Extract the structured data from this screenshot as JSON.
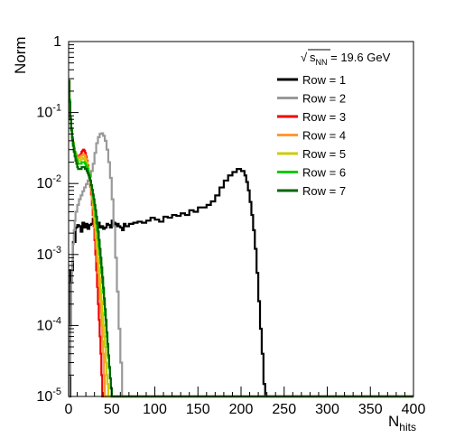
{
  "chart_data": {
    "type": "line",
    "title": "",
    "annotation": {
      "sqrt_symbol": "√",
      "s": "s",
      "s_sub": "NN",
      "text": " = 19.6 GeV"
    },
    "xlabel": {
      "main": "N",
      "sub": "hits"
    },
    "ylabel": "Norm",
    "xlim": [
      0,
      400
    ],
    "ylim": [
      1e-05,
      1
    ],
    "yscale": "log",
    "grid": false,
    "legend_position": "top-right",
    "x_ticks": [
      0,
      50,
      100,
      150,
      200,
      250,
      300,
      350,
      400
    ],
    "y_ticks": [
      {
        "value": 1,
        "base": "1",
        "exp": ""
      },
      {
        "value": 0.1,
        "base": "10",
        "exp": "-1"
      },
      {
        "value": 0.01,
        "base": "10",
        "exp": "-2"
      },
      {
        "value": 0.001,
        "base": "10",
        "exp": "-3"
      },
      {
        "value": 0.0001,
        "base": "10",
        "exp": "-4"
      },
      {
        "value": 1e-05,
        "base": "10",
        "exp": "-5"
      }
    ],
    "series": [
      {
        "name": "Row = 1",
        "color": "#000000",
        "x": [
          0,
          2,
          5,
          8,
          10,
          12,
          14,
          16,
          18,
          20,
          22,
          24,
          26,
          28,
          30,
          32,
          34,
          36,
          38,
          40,
          42,
          44,
          46,
          48,
          50,
          52,
          54,
          56,
          58,
          60,
          62,
          64,
          66,
          70,
          75,
          80,
          85,
          90,
          95,
          100,
          105,
          110,
          115,
          120,
          125,
          130,
          135,
          140,
          145,
          150,
          155,
          160,
          165,
          170,
          175,
          180,
          185,
          190,
          195,
          200,
          204,
          206,
          208,
          210,
          212,
          214,
          216,
          218,
          220,
          222,
          224,
          226,
          228,
          230,
          232,
          234,
          236,
          238
        ],
        "y": [
          1e-05,
          0.0006,
          0.0015,
          0.0024,
          0.0026,
          0.0025,
          0.0021,
          0.0028,
          0.0024,
          0.0027,
          0.0023,
          0.0026,
          0.0027,
          0.0032,
          0.0024,
          0.0023,
          0.0028,
          0.0024,
          0.0025,
          0.0023,
          0.0024,
          0.0027,
          0.0026,
          0.0024,
          0.003,
          0.0028,
          0.0025,
          0.0027,
          0.0025,
          0.0024,
          0.0022,
          0.0027,
          0.0025,
          0.0027,
          0.0028,
          0.0029,
          0.0028,
          0.003,
          0.0033,
          0.0031,
          0.0029,
          0.0034,
          0.0033,
          0.0036,
          0.0035,
          0.0038,
          0.0036,
          0.0042,
          0.004,
          0.0046,
          0.0046,
          0.005,
          0.0056,
          0.0068,
          0.0088,
          0.011,
          0.013,
          0.0145,
          0.016,
          0.015,
          0.013,
          0.0105,
          0.008,
          0.0055,
          0.0036,
          0.0022,
          0.0012,
          0.00055,
          0.00022,
          9e-05,
          4e-05,
          1.5e-05,
          1e-05,
          1e-05,
          1e-05,
          1e-05,
          1e-05,
          1e-05
        ]
      },
      {
        "name": "Row = 2",
        "color": "#999999",
        "x": [
          0,
          1,
          2,
          3,
          4,
          5,
          6,
          7,
          8,
          10,
          12,
          14,
          16,
          18,
          20,
          22,
          24,
          26,
          28,
          30,
          32,
          34,
          36,
          38,
          40,
          42,
          44,
          46,
          48,
          50,
          52,
          54,
          56,
          58,
          60,
          62,
          64,
          66,
          68,
          70
        ],
        "y": [
          1e-05,
          2e-05,
          0.0001,
          0.0004,
          0.0008,
          0.0014,
          0.0022,
          0.003,
          0.004,
          0.005,
          0.006,
          0.0068,
          0.0078,
          0.0088,
          0.0098,
          0.011,
          0.0125,
          0.015,
          0.019,
          0.027,
          0.037,
          0.045,
          0.05,
          0.051,
          0.047,
          0.04,
          0.03,
          0.02,
          0.012,
          0.006,
          0.0025,
          0.0009,
          0.0003,
          9e-05,
          3e-05,
          1e-05,
          1e-05,
          1e-05,
          1e-05,
          1e-05
        ]
      },
      {
        "name": "Row = 3",
        "color": "#ee0000",
        "x": [
          0,
          1,
          2,
          3,
          4,
          5,
          6,
          7,
          8,
          9,
          10,
          11,
          12,
          13,
          14,
          15,
          16,
          17,
          18,
          19,
          20,
          21,
          22,
          23,
          24,
          25,
          26,
          27,
          28,
          29,
          30,
          31,
          32,
          33,
          34,
          35,
          36,
          37,
          38,
          39,
          40,
          41,
          42,
          44,
          50,
          60,
          80
        ],
        "y": [
          0.28,
          0.15,
          0.085,
          0.06,
          0.045,
          0.038,
          0.032,
          0.028,
          0.026,
          0.025,
          0.024,
          0.024,
          0.024,
          0.025,
          0.026,
          0.028,
          0.029,
          0.03,
          0.029,
          0.027,
          0.024,
          0.021,
          0.018,
          0.015,
          0.012,
          0.009,
          0.007,
          0.005,
          0.0036,
          0.0025,
          0.0016,
          0.001,
          0.0006,
          0.00035,
          0.0002,
          0.00012,
          7e-05,
          4e-05,
          2e-05,
          1e-05,
          1e-05,
          1e-05,
          1e-05,
          1e-05,
          1e-05,
          1e-05,
          1e-05
        ]
      },
      {
        "name": "Row = 4",
        "color": "#ff9933",
        "x": [
          0,
          1,
          2,
          3,
          4,
          5,
          6,
          7,
          8,
          9,
          10,
          11,
          12,
          13,
          14,
          15,
          16,
          17,
          18,
          19,
          20,
          21,
          22,
          23,
          24,
          25,
          26,
          27,
          28,
          29,
          30,
          31,
          32,
          33,
          34,
          35,
          36,
          37,
          38,
          39,
          40,
          41,
          42,
          43,
          44,
          46,
          50,
          60,
          80
        ],
        "y": [
          0.28,
          0.15,
          0.085,
          0.06,
          0.045,
          0.038,
          0.032,
          0.028,
          0.026,
          0.024,
          0.023,
          0.023,
          0.023,
          0.024,
          0.024,
          0.025,
          0.025,
          0.026,
          0.025,
          0.024,
          0.022,
          0.02,
          0.017,
          0.015,
          0.012,
          0.01,
          0.008,
          0.006,
          0.0045,
          0.0033,
          0.0024,
          0.0017,
          0.0012,
          0.0008,
          0.00055,
          0.00036,
          0.00024,
          0.00015,
          0.0001,
          6e-05,
          4e-05,
          2e-05,
          1e-05,
          1e-05,
          1e-05,
          1e-05,
          1e-05,
          1e-05,
          1e-05
        ]
      },
      {
        "name": "Row = 5",
        "color": "#cccc00",
        "x": [
          0,
          1,
          2,
          3,
          4,
          5,
          6,
          7,
          8,
          9,
          10,
          11,
          12,
          13,
          14,
          15,
          16,
          17,
          18,
          19,
          20,
          21,
          22,
          23,
          24,
          25,
          26,
          27,
          28,
          29,
          30,
          31,
          32,
          33,
          34,
          35,
          36,
          37,
          38,
          39,
          40,
          41,
          42,
          43,
          44,
          45,
          46,
          47,
          48,
          50,
          60,
          80
        ],
        "y": [
          0.28,
          0.15,
          0.085,
          0.06,
          0.045,
          0.038,
          0.032,
          0.028,
          0.025,
          0.023,
          0.022,
          0.021,
          0.021,
          0.021,
          0.022,
          0.022,
          0.023,
          0.023,
          0.022,
          0.021,
          0.02,
          0.019,
          0.017,
          0.015,
          0.013,
          0.011,
          0.009,
          0.007,
          0.0055,
          0.0042,
          0.0032,
          0.0024,
          0.0018,
          0.0013,
          0.0009,
          0.00065,
          0.00046,
          0.00032,
          0.00022,
          0.00015,
          0.0001,
          7e-05,
          5e-05,
          3e-05,
          2e-05,
          1.5e-05,
          1e-05,
          1e-05,
          1e-05,
          1e-05,
          1e-05,
          1e-05
        ]
      },
      {
        "name": "Row = 6",
        "color": "#00cc00",
        "x": [
          0,
          1,
          2,
          3,
          4,
          5,
          6,
          7,
          8,
          9,
          10,
          11,
          12,
          13,
          14,
          15,
          16,
          17,
          18,
          19,
          20,
          21,
          22,
          23,
          24,
          25,
          26,
          27,
          28,
          29,
          30,
          31,
          32,
          33,
          34,
          35,
          36,
          37,
          38,
          39,
          40,
          41,
          42,
          43,
          44,
          45,
          46,
          47,
          48,
          49,
          50,
          51,
          52,
          54,
          60,
          80
        ],
        "y": [
          0.28,
          0.15,
          0.085,
          0.06,
          0.045,
          0.037,
          0.031,
          0.027,
          0.024,
          0.022,
          0.02,
          0.019,
          0.019,
          0.019,
          0.019,
          0.02,
          0.02,
          0.02,
          0.02,
          0.019,
          0.018,
          0.017,
          0.016,
          0.014,
          0.013,
          0.011,
          0.0095,
          0.008,
          0.0066,
          0.0054,
          0.0044,
          0.0035,
          0.0028,
          0.0022,
          0.0017,
          0.0013,
          0.001,
          0.00075,
          0.00055,
          0.0004,
          0.00029,
          0.0002,
          0.00014,
          0.0001,
          7e-05,
          5e-05,
          3.5e-05,
          2.5e-05,
          1.8e-05,
          1.3e-05,
          1e-05,
          1e-05,
          1e-05,
          1e-05,
          1e-05,
          1e-05
        ]
      },
      {
        "name": "Row = 7",
        "color": "#006600",
        "x": [
          0,
          1,
          2,
          3,
          4,
          5,
          6,
          7,
          8,
          9,
          10,
          11,
          12,
          13,
          14,
          15,
          16,
          17,
          18,
          19,
          20,
          21,
          22,
          23,
          24,
          25,
          26,
          27,
          28,
          29,
          30,
          31,
          32,
          33,
          34,
          35,
          36,
          37,
          38,
          39,
          40,
          41,
          42,
          43,
          44,
          45,
          46,
          47,
          48,
          49,
          50,
          52,
          54,
          60,
          80
        ],
        "y": [
          0.28,
          0.14,
          0.08,
          0.056,
          0.042,
          0.034,
          0.028,
          0.024,
          0.021,
          0.019,
          0.017,
          0.016,
          0.016,
          0.016,
          0.016,
          0.017,
          0.017,
          0.017,
          0.017,
          0.016,
          0.016,
          0.015,
          0.014,
          0.013,
          0.012,
          0.011,
          0.0095,
          0.0082,
          0.007,
          0.006,
          0.005,
          0.0042,
          0.0034,
          0.0027,
          0.0021,
          0.0016,
          0.0012,
          0.0009,
          0.00066,
          0.00048,
          0.00034,
          0.00024,
          0.00017,
          0.00012,
          8e-05,
          5.5e-05,
          3.8e-05,
          2.6e-05,
          1.8e-05,
          1.3e-05,
          1e-05,
          1e-05,
          1e-05,
          1e-05,
          1e-05
        ]
      }
    ]
  }
}
